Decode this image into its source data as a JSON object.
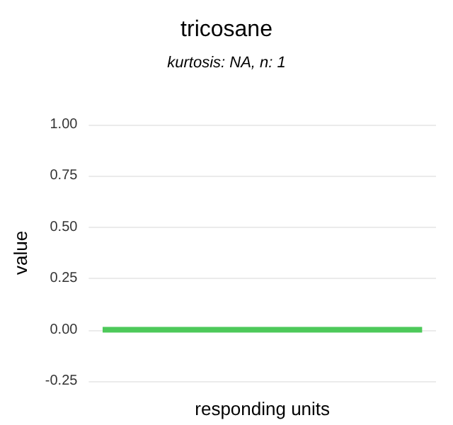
{
  "chart_data": {
    "type": "box",
    "title": "tricosane",
    "subtitle": "kurtosis: NA, n: 1",
    "xlabel": "responding units",
    "ylabel": "value",
    "categories": [
      null
    ],
    "series": [
      {
        "color": "#4dc95a",
        "boxes": [
          {
            "low": 0,
            "q1": 0,
            "median": 0,
            "q3": 0,
            "high": 0
          }
        ]
      }
    ],
    "ylim": [
      -0.25,
      1
    ],
    "yticks": [
      {
        "value": -0.25,
        "label": "-0.25"
      },
      {
        "value": 0,
        "label": "0.00"
      },
      {
        "value": 0.25,
        "label": "0.25"
      },
      {
        "value": 0.5,
        "label": "0.50"
      },
      {
        "value": 0.75,
        "label": "0.75"
      },
      {
        "value": 1,
        "label": "1.00"
      }
    ],
    "grid": "y"
  }
}
